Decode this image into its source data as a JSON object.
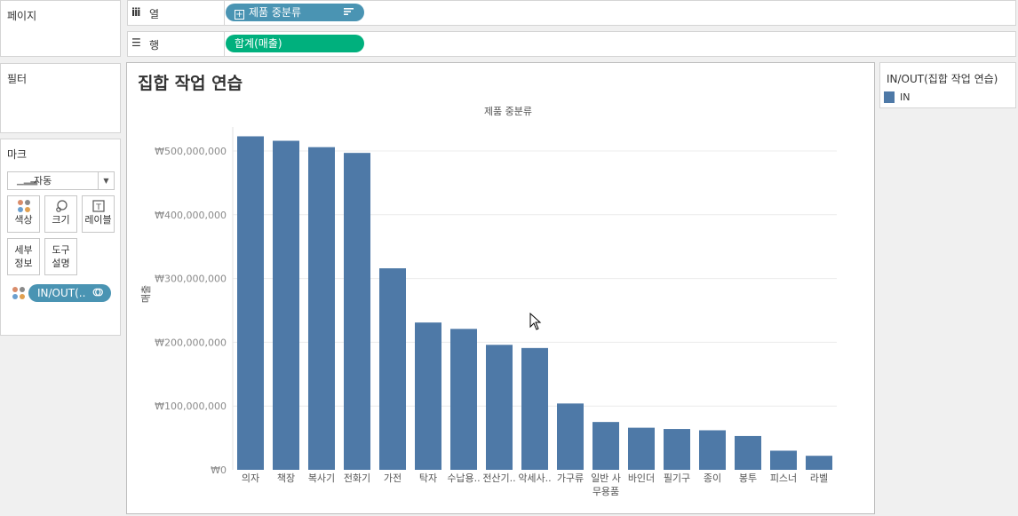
{
  "pages_panel": {
    "title": "페이지"
  },
  "shelves": {
    "columns": {
      "icon": "iii",
      "label": "열",
      "pill": "제품 중분류",
      "pill_icon": "expand-icon",
      "sort_icon": "sort-icon"
    },
    "rows": {
      "icon": "☰",
      "label": "행",
      "pill": "합계(매출)"
    }
  },
  "filters_panel": {
    "title": "필터"
  },
  "marks_panel": {
    "title": "마크",
    "mark_type": "자동",
    "buttons": [
      {
        "id": "color",
        "label": "색상",
        "icon": "color-dots-icon"
      },
      {
        "id": "size",
        "label": "크기",
        "icon": "size-icon"
      },
      {
        "id": "label",
        "label": "레이블",
        "icon": "label-icon"
      },
      {
        "id": "detail",
        "label_line1": "세부",
        "label_line2": "정보"
      },
      {
        "id": "tooltip",
        "label_line1": "도구",
        "label_line2": "설명"
      }
    ],
    "color_pill": "IN/OUT(.."
  },
  "sheet": {
    "title": "집합 작업 연습"
  },
  "legend": {
    "title": "IN/OUT(집합 작업 연습)",
    "items": [
      {
        "label": "IN",
        "color": "#4e79a7"
      }
    ]
  },
  "colors": {
    "bar": "#4e79a7",
    "pill_blue": "#4a94b3",
    "pill_green": "#00b07d"
  },
  "chart_data": {
    "type": "bar",
    "title": "",
    "header": "제품 중분류",
    "ylabel": "매출",
    "ylim": [
      0,
      550000000
    ],
    "yticks": [
      0,
      100000000,
      200000000,
      300000000,
      400000000,
      500000000
    ],
    "ytick_labels": [
      "₩0",
      "₩100,000,000",
      "₩200,000,000",
      "₩300,000,000",
      "₩400,000,000",
      "₩500,000,000"
    ],
    "grid": true,
    "categories": [
      "의자",
      "책장",
      "복사기",
      "전화기",
      "가전",
      "탁자",
      "수납용..",
      "전산기..",
      "악세사..",
      "가구류",
      "일반 사\n무용품",
      "바인더",
      "필기구",
      "종이",
      "봉투",
      "피스너",
      "라벨"
    ],
    "series": [
      {
        "name": "IN",
        "values": [
          523000000,
          516000000,
          506000000,
          497000000,
          316000000,
          231000000,
          221000000,
          196000000,
          191000000,
          104000000,
          75000000,
          66000000,
          64000000,
          62000000,
          53000000,
          30000000,
          22000000
        ]
      }
    ]
  }
}
